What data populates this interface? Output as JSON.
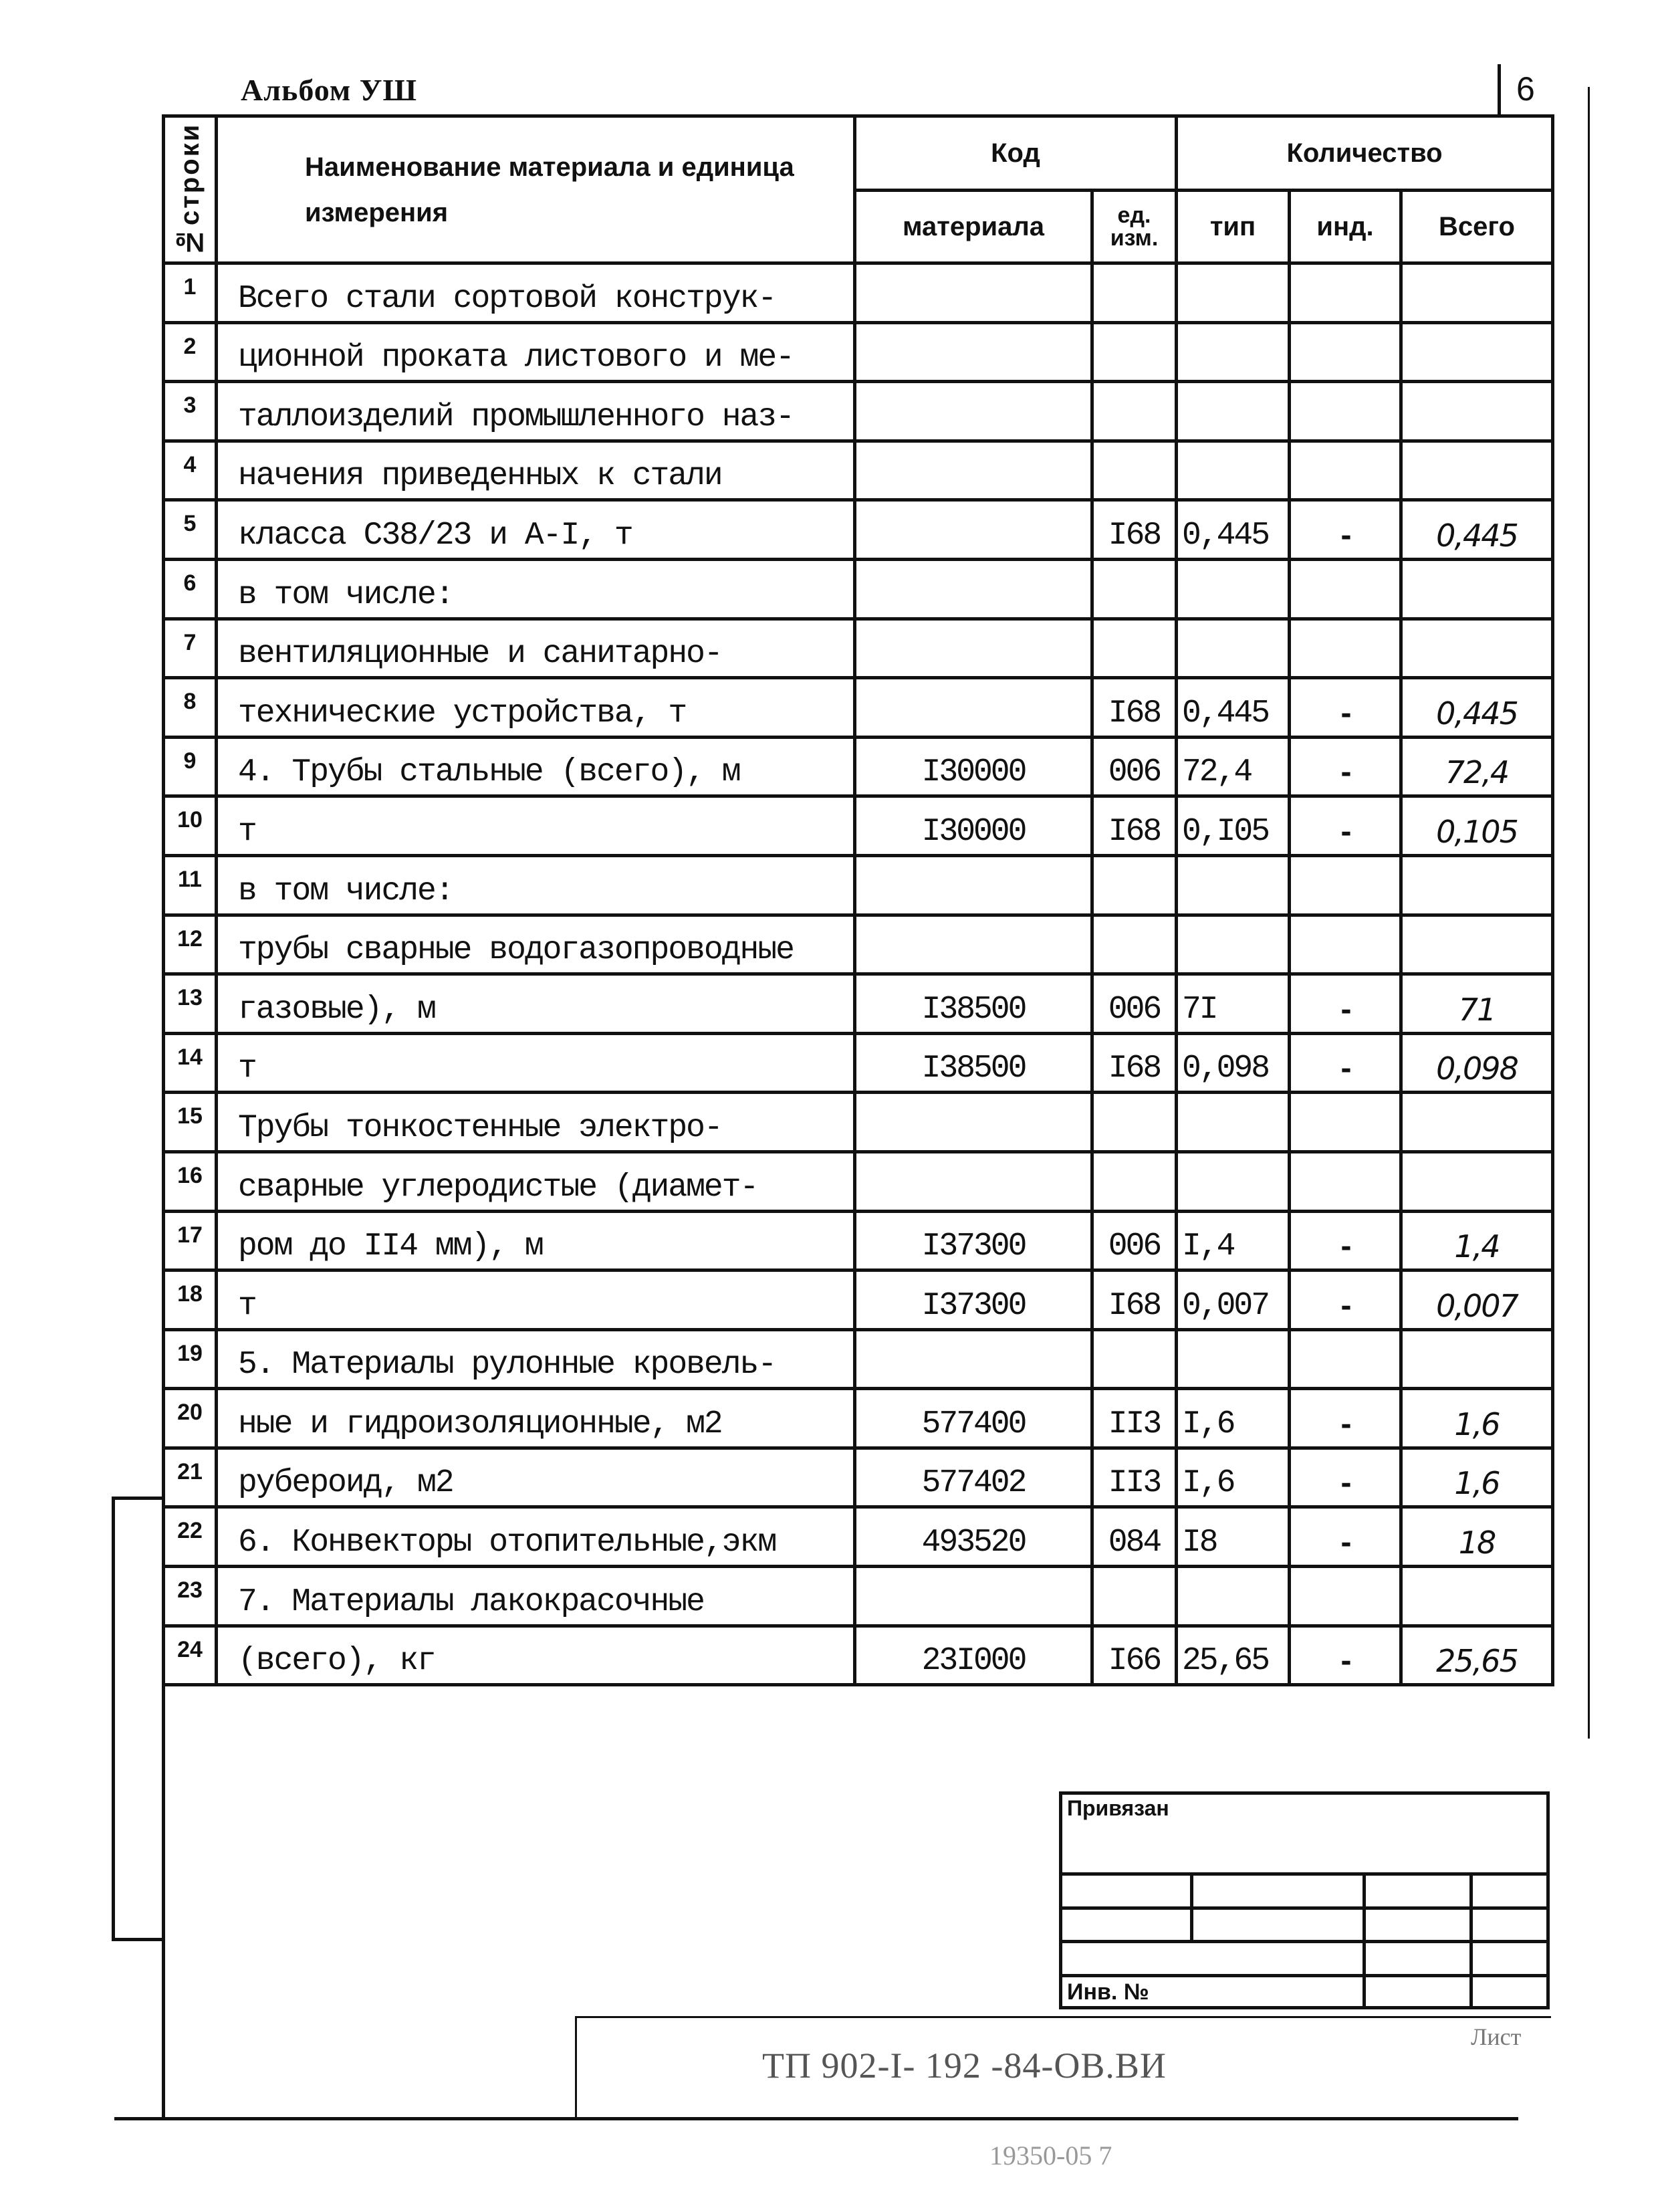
{
  "header": {
    "album": "Альбом УШ",
    "page_number": "6"
  },
  "table": {
    "columns": {
      "row_no": "№строки",
      "name": "Наименование материала и единица измерения",
      "code_group": "Код",
      "quantity_group": "Количество",
      "material": "материала",
      "unit": "ед. изм.",
      "tip": "тип",
      "ind": "инд.",
      "total": "Всего"
    },
    "rows": [
      {
        "no": "1",
        "name": "Всего стали сортовой конструк-",
        "code": "",
        "unit": "",
        "tip": "",
        "ind": "",
        "total": ""
      },
      {
        "no": "2",
        "name": "ционной проката листового и ме-",
        "code": "",
        "unit": "",
        "tip": "",
        "ind": "",
        "total": ""
      },
      {
        "no": "3",
        "name": "таллоизделий промышленного наз-",
        "code": "",
        "unit": "",
        "tip": "",
        "ind": "",
        "total": ""
      },
      {
        "no": "4",
        "name": "начения приведенных к стали",
        "code": "",
        "unit": "",
        "tip": "",
        "ind": "",
        "total": ""
      },
      {
        "no": "5",
        "name": "класса С38/23 и А-I, т",
        "code": "",
        "unit": "I68",
        "tip": "0,445",
        "ind": "-",
        "total": "0,445"
      },
      {
        "no": "6",
        "name": "в том числе:",
        "code": "",
        "unit": "",
        "tip": "",
        "ind": "",
        "total": ""
      },
      {
        "no": "7",
        "name": "вентиляционные и санитарно-",
        "code": "",
        "unit": "",
        "tip": "",
        "ind": "",
        "total": ""
      },
      {
        "no": "8",
        "name": "технические устройства, т",
        "code": "",
        "unit": "I68",
        "tip": "0,445",
        "ind": "-",
        "total": "0,445"
      },
      {
        "no": "9",
        "name": "4. Трубы стальные (всего), м",
        "code": "I30000",
        "unit": "006",
        "tip": "72,4",
        "ind": "-",
        "total": "72,4"
      },
      {
        "no": "10",
        "name": "т",
        "code": "I30000",
        "unit": "I68",
        "tip": "0,I05",
        "ind": "-",
        "total": "0,105"
      },
      {
        "no": "11",
        "name": "в том числе:",
        "code": "",
        "unit": "",
        "tip": "",
        "ind": "",
        "total": ""
      },
      {
        "no": "12",
        "name": "трубы сварные водогазопроводные",
        "code": "",
        "unit": "",
        "tip": "",
        "ind": "",
        "total": ""
      },
      {
        "no": "13",
        "name": "газовые),     м",
        "code": "I38500",
        "unit": "006",
        "tip": "7I",
        "ind": "-",
        "total": "71"
      },
      {
        "no": "14",
        "name": "т",
        "code": "I38500",
        "unit": "I68",
        "tip": "0,098",
        "ind": "-",
        "total": "0,098"
      },
      {
        "no": "15",
        "name": "Трубы тонкостенные электро-",
        "code": "",
        "unit": "",
        "tip": "",
        "ind": "",
        "total": ""
      },
      {
        "no": "16",
        "name": "сварные углеродистые (диамет-",
        "code": "",
        "unit": "",
        "tip": "",
        "ind": "",
        "total": ""
      },
      {
        "no": "17",
        "name": "ром до II4 мм), м",
        "code": "I37300",
        "unit": "006",
        "tip": "I,4",
        "ind": "-",
        "total": "1,4"
      },
      {
        "no": "18",
        "name": "т",
        "code": "I37300",
        "unit": "I68",
        "tip": "0,007",
        "ind": "-",
        "total": "0,007"
      },
      {
        "no": "19",
        "name": "5. Материалы рулонные кровель-",
        "code": "",
        "unit": "",
        "tip": "",
        "ind": "",
        "total": ""
      },
      {
        "no": "20",
        "name": "ные и гидроизоляционные, м2",
        "code": "577400",
        "unit": "II3",
        "tip": "I,6",
        "ind": "-",
        "total": "1,6"
      },
      {
        "no": "21",
        "name": "рубероид, м2",
        "code": "577402",
        "unit": "II3",
        "tip": "I,6",
        "ind": "-",
        "total": "1,6"
      },
      {
        "no": "22",
        "name": "6. Конвекторы отопительные,экм",
        "code": "493520",
        "unit": "084",
        "tip": "I8",
        "ind": "-",
        "total": "18"
      },
      {
        "no": "23",
        "name": "7. Материалы лакокрасочные",
        "code": "",
        "unit": "",
        "tip": "",
        "ind": "",
        "total": ""
      },
      {
        "no": "24",
        "name": "(всего), кг",
        "code": "23I000",
        "unit": "I66",
        "tip": "25,65",
        "ind": "-",
        "total": "25,65"
      }
    ]
  },
  "stamp": {
    "attached_label": "Привязан",
    "inventory_label": "Инв. №"
  },
  "footer": {
    "doc_code": "ТП 902-I- 192   -84-ОВ.ВИ",
    "sheet_mark": "Лист",
    "archive_number": "19350-05  7"
  }
}
